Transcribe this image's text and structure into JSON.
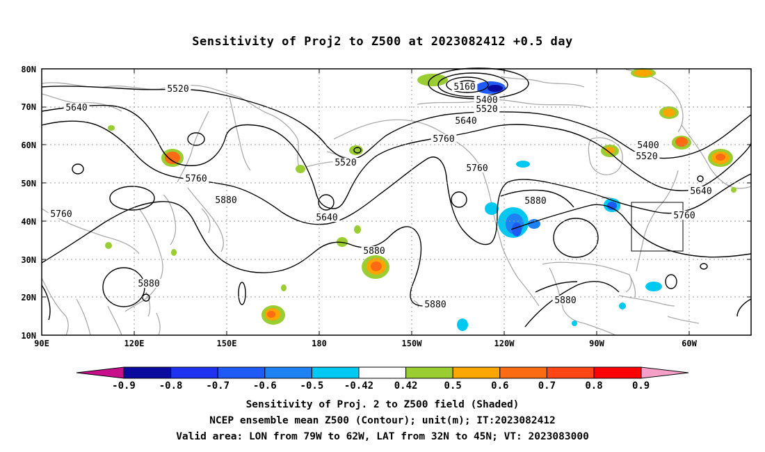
{
  "title": "Sensitivity of Proj2 to Z500 at 2023082412 +0.5 day",
  "captions": {
    "line1": "Sensitivity of Proj. 2 to Z500 field (Shaded)",
    "line2": "NCEP ensemble mean Z500 (Contour); unit(m); IT:2023082412",
    "line3": "Valid area: LON from 79W to 62W, LAT from 32N to 45N; VT: 2023083000"
  },
  "axes": {
    "lat_ticks": [
      "80N",
      "70N",
      "60N",
      "50N",
      "40N",
      "30N",
      "20N",
      "10N"
    ],
    "lon_ticks": [
      "90E",
      "120E",
      "150E",
      "180",
      "150W",
      "120W",
      "90W",
      "60W"
    ]
  },
  "contour_labels": [
    "5520",
    "5640",
    "5160",
    "5400",
    "5520",
    "5640",
    "5760",
    "5520",
    "5760",
    "5640",
    "5760",
    "5880",
    "5880",
    "5880",
    "5880",
    "5880",
    "5880",
    "5400",
    "5520",
    "5640",
    "5760",
    "5760"
  ],
  "colorbar": {
    "tick_labels": [
      "-0.9",
      "-0.8",
      "-0.7",
      "-0.6",
      "-0.5",
      "-0.42",
      "0.42",
      "0.5",
      "0.6",
      "0.7",
      "0.8",
      "0.9"
    ],
    "colors": [
      "#0a0a9e",
      "#1e32f0",
      "#1e5af5",
      "#1e82f5",
      "#00c8f0",
      "#ffffff",
      "#9acd32",
      "#ffa500",
      "#ff6a14",
      "#ff4614",
      "#ff0000"
    ],
    "end_low": "#c8108c",
    "end_high": "#f5a0c8"
  },
  "colors": {
    "contour": "#000000",
    "coast": "#aaaaaa",
    "grid": "#999999"
  },
  "valid_box": {
    "lon_min": -79,
    "lon_max": -62,
    "lat_min": 32,
    "lat_max": 45
  }
}
